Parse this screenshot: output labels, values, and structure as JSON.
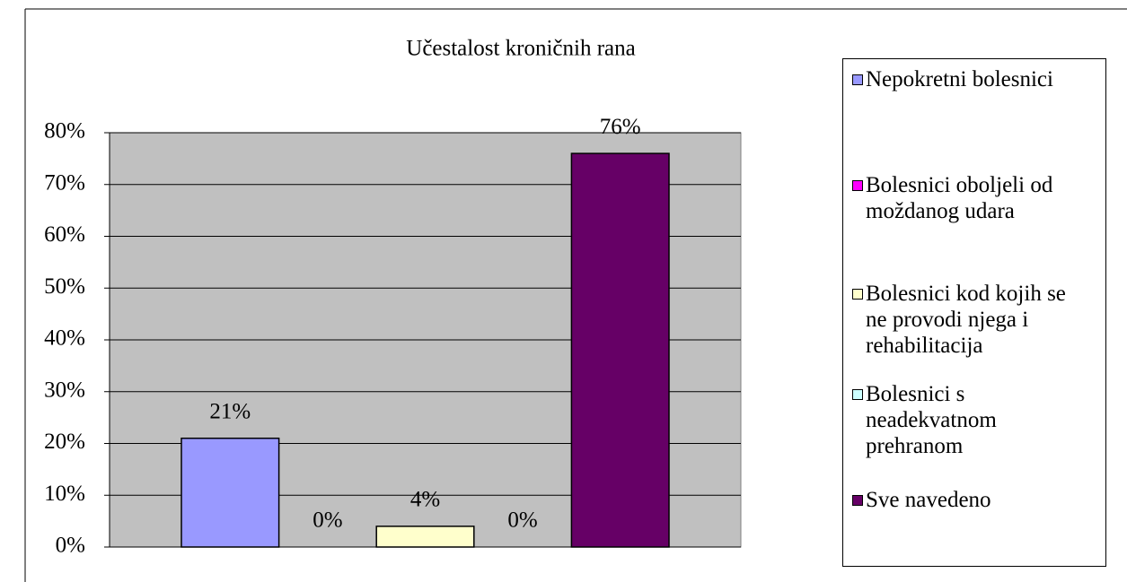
{
  "chart_data": {
    "type": "bar",
    "title": "Učestalost kroničnih rana",
    "series": [
      {
        "name": "Nepokretni bolesnici",
        "color": "#9999ff",
        "values": [
          21
        ],
        "value_labels": [
          "21%"
        ]
      },
      {
        "name": "Bolesnici oboljeli od moždanog udara",
        "color": "#ff00ff",
        "values": [
          0
        ],
        "value_labels": [
          "0%"
        ]
      },
      {
        "name": "Bolesnici kod kojih se ne provodi njega i rehabilitacija",
        "color": "#ffffcc",
        "values": [
          4
        ],
        "value_labels": [
          "4%"
        ]
      },
      {
        "name": "Bolesnici s neadekvatnom prehranom",
        "color": "#ccffff",
        "values": [
          0
        ],
        "value_labels": [
          "0%"
        ]
      },
      {
        "name": "Sve navedeno",
        "color": "#660066",
        "values": [
          76
        ],
        "value_labels": [
          "76%"
        ]
      }
    ],
    "ylim": [
      0,
      80
    ],
    "yticks": [
      {
        "value": 0,
        "label": "0%"
      },
      {
        "value": 10,
        "label": "10%"
      },
      {
        "value": 20,
        "label": "20%"
      },
      {
        "value": 30,
        "label": "30%"
      },
      {
        "value": 40,
        "label": "40%"
      },
      {
        "value": 50,
        "label": "50%"
      },
      {
        "value": 60,
        "label": "60%"
      },
      {
        "value": 70,
        "label": "70%"
      },
      {
        "value": 80,
        "label": "80%"
      }
    ],
    "grid": true,
    "plot_background": "#c0c0c0",
    "legend": "right"
  }
}
